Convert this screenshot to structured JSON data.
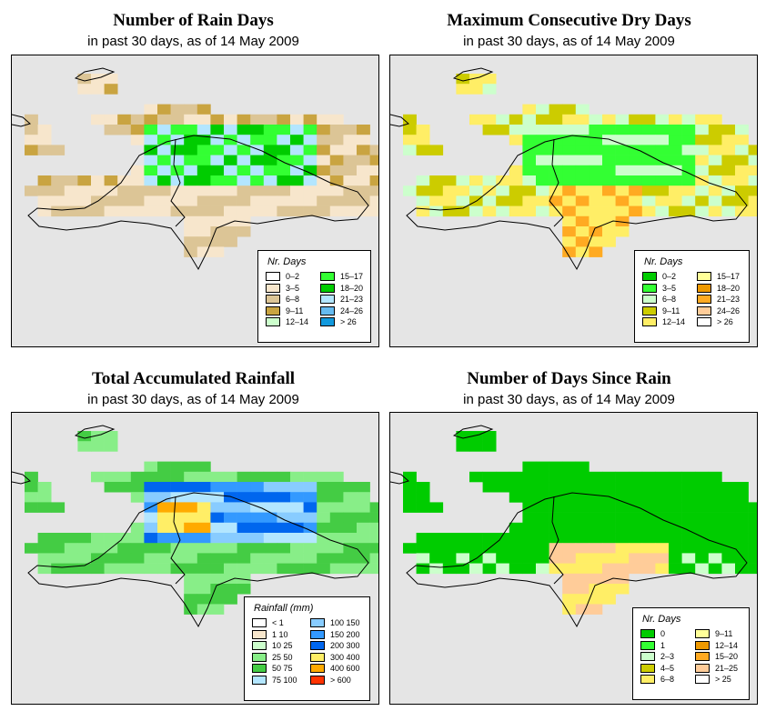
{
  "panels": [
    {
      "title": "Number of Rain Days",
      "subtitle": "in past 30 days, as of  14 May 2009",
      "legend_title": "Nr. Days",
      "legend": [
        {
          "label": "0–2",
          "color": "#ffffff"
        },
        {
          "label": "3–5",
          "color": "#f7e6cc"
        },
        {
          "label": "6–8",
          "color": "#dcc596"
        },
        {
          "label": "9–11",
          "color": "#c9a441"
        },
        {
          "label": "12–14",
          "color": "#ccffcc"
        },
        {
          "label": "15–17",
          "color": "#33ff33"
        },
        {
          "label": "18–20",
          "color": "#00cc00"
        },
        {
          "label": "21–23",
          "color": "#b3e6ff"
        },
        {
          "label": "24–26",
          "color": "#66bbf0"
        },
        {
          "label": "> 26",
          "color": "#1199dd"
        }
      ]
    },
    {
      "title": "Maximum Consecutive Dry Days",
      "subtitle": "in past 30 days, as of  14 May 2009",
      "legend_title": "Nr. Days",
      "legend": [
        {
          "label": "0–2",
          "color": "#00cc00"
        },
        {
          "label": "3–5",
          "color": "#33ff33"
        },
        {
          "label": "6–8",
          "color": "#ccffcc"
        },
        {
          "label": "9–11",
          "color": "#cccc00"
        },
        {
          "label": "12–14",
          "color": "#ffee66"
        },
        {
          "label": "15–17",
          "color": "#ffff99"
        },
        {
          "label": "18–20",
          "color": "#ee9900"
        },
        {
          "label": "21–23",
          "color": "#ffaa22"
        },
        {
          "label": "24–26",
          "color": "#ffcc99"
        },
        {
          "label": "> 26",
          "color": "#ffffff"
        }
      ]
    },
    {
      "title": "Total Accumulated Rainfall",
      "subtitle": "in past 30 days, as of  14 May 2009",
      "legend_title": "Rainfall (mm)",
      "legend": [
        {
          "label": "< 1",
          "color": "#ffffff"
        },
        {
          "label": "1   10",
          "color": "#f7e6cc"
        },
        {
          "label": "10   25",
          "color": "#ccffcc"
        },
        {
          "label": "25   50",
          "color": "#88ee88"
        },
        {
          "label": "50   75",
          "color": "#44cc44"
        },
        {
          "label": "75   100",
          "color": "#b3e6ff"
        },
        {
          "label": "100   150",
          "color": "#88ccff"
        },
        {
          "label": "150   200",
          "color": "#3399ff"
        },
        {
          "label": "200   300",
          "color": "#0066ee"
        },
        {
          "label": "300   400",
          "color": "#ffee66"
        },
        {
          "label": "400   600",
          "color": "#ffaa00"
        },
        {
          "label": "> 600",
          "color": "#ff3300"
        }
      ]
    },
    {
      "title": "Number of Days Since Rain",
      "subtitle": "in past 30 days, as of  14 May 2009",
      "legend_title": "Nr. Days",
      "legend": [
        {
          "label": "0",
          "color": "#00cc00"
        },
        {
          "label": "1",
          "color": "#33ff33"
        },
        {
          "label": "2–3",
          "color": "#ccffcc"
        },
        {
          "label": "4–5",
          "color": "#cccc00"
        },
        {
          "label": "6–8",
          "color": "#ffee66"
        },
        {
          "label": "9–11",
          "color": "#ffff99"
        },
        {
          "label": "12–14",
          "color": "#ee9900"
        },
        {
          "label": "15–20",
          "color": "#ffaa22"
        },
        {
          "label": "21–25",
          "color": "#ffcc99"
        },
        {
          "label": "> 25",
          "color": "#ffffff"
        }
      ]
    }
  ]
}
